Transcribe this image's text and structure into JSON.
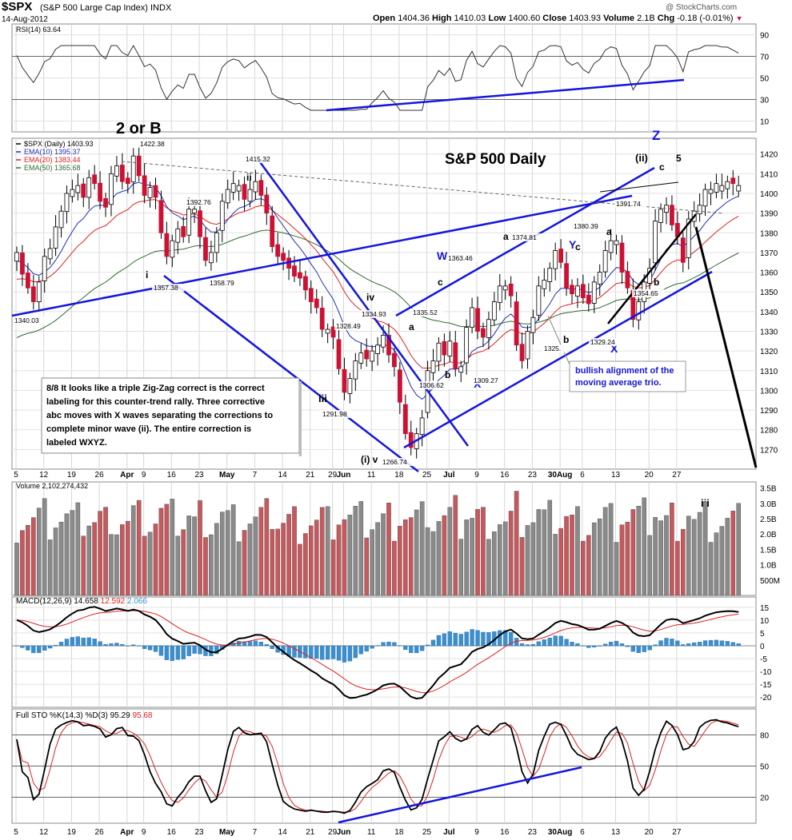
{
  "header": {
    "symbol": "$SPX",
    "name": "(S&P 500 Large Cap Index) INDX",
    "date": "14-Aug-2012",
    "open_label": "Open",
    "open": "1404.36",
    "high_label": "High",
    "high": "1410.03",
    "low_label": "Low",
    "low": "1400.60",
    "close_label": "Close",
    "close": "1403.93",
    "volume_label": "Volume",
    "volume": "2.1B",
    "chg_label": "Chg",
    "chg": "-0.18 (-0.01%)",
    "watermark": "@ StockCharts.com"
  },
  "colors": {
    "up": "#ffffff",
    "down": "#cc1133",
    "ema10": "#1f2fb0",
    "ema20": "#dd2222",
    "ema50": "#2f6b2f",
    "annotation": "#1515dd",
    "macd_hist": "#3a8fd0",
    "volume_up": "#8a8a8a",
    "volume_down": "#c8585c"
  },
  "chart_data": [
    {
      "type": "candlestick",
      "panel": "price",
      "title": "S&P 500 Daily",
      "legend": [
        "$SPX (Daily) 1403.93",
        "EMA(10) 1395.37",
        "EMA(20) 1383.44",
        "EMA(50) 1365.68"
      ],
      "x_tick_labels": [
        "5",
        "12",
        "19",
        "26",
        "Apr",
        "9",
        "16",
        "23",
        "May",
        "7",
        "14",
        "21",
        "29",
        "Jun",
        "11",
        "18",
        "25",
        "Jul",
        "9",
        "16",
        "23",
        "30Aug",
        "6",
        "13",
        "20",
        "27"
      ],
      "y_ticks": [
        1270,
        1280,
        1290,
        1300,
        1310,
        1320,
        1330,
        1340,
        1350,
        1360,
        1370,
        1380,
        1390,
        1400,
        1410,
        1420
      ],
      "ylim": [
        1260,
        1428
      ],
      "closes": [
        1370,
        1359,
        1352,
        1345,
        1355,
        1368,
        1372,
        1383,
        1391,
        1400,
        1402,
        1404,
        1398,
        1408,
        1405,
        1396,
        1393,
        1410,
        1414,
        1406,
        1405,
        1419,
        1409,
        1399,
        1403,
        1398,
        1380,
        1368,
        1376,
        1382,
        1378,
        1392,
        1392,
        1378,
        1366,
        1370,
        1380,
        1396,
        1402,
        1405,
        1404,
        1397,
        1402,
        1406,
        1399,
        1390,
        1373,
        1368,
        1366,
        1362,
        1358,
        1357,
        1351,
        1345,
        1342,
        1331,
        1331,
        1327,
        1311,
        1299,
        1306,
        1315,
        1319,
        1316,
        1320,
        1323,
        1328,
        1318,
        1312,
        1294,
        1278,
        1271,
        1278,
        1286,
        1310,
        1315,
        1324,
        1318,
        1325,
        1311,
        1312,
        1332,
        1342,
        1330,
        1327,
        1336,
        1345,
        1353,
        1353,
        1348,
        1323,
        1315,
        1330,
        1337,
        1353,
        1356,
        1362,
        1371,
        1365,
        1352,
        1349,
        1353,
        1347,
        1344,
        1355,
        1360,
        1371,
        1376,
        1376,
        1360,
        1352,
        1336,
        1345,
        1355,
        1362,
        1386,
        1392,
        1394,
        1384,
        1378,
        1365,
        1387,
        1391,
        1394,
        1402,
        1402,
        1405,
        1404,
        1406,
        1405,
        1404
      ],
      "annotations": [
        {
          "text": "2 or B"
        },
        {
          "text": "Z"
        },
        {
          "text": "(ii)"
        },
        {
          "text": "5"
        },
        {
          "text": "c"
        },
        {
          "text": "i"
        },
        {
          "text": "ii"
        },
        {
          "text": "iii"
        },
        {
          "text": "iv"
        },
        {
          "text": "(i) v"
        },
        {
          "text": "W"
        },
        {
          "text": "X"
        },
        {
          "text": "Y"
        },
        {
          "text": "X"
        },
        {
          "text": "a"
        },
        {
          "text": "b"
        },
        {
          "text": "c"
        },
        {
          "text": "a"
        },
        {
          "text": "b"
        },
        {
          "text": "c"
        },
        {
          "text": "a"
        },
        {
          "text": "b"
        },
        {
          "text": "bullish alignment of the moving average trio."
        },
        {
          "text": "8/8 It looks like a triple Zig-Zag correct is the correct labeling for this counter-trend rally. Three corrective abc moves with X waves separating the corrections to complete minor wave (ii). The entire correction is labeled WXYZ."
        }
      ],
      "price_labels": [
        "1422.38",
        "1415.32",
        "1392.76",
        "1357.38",
        "1358.79",
        "1340.03",
        "1334.93",
        "1328.49",
        "1291.98",
        "1266.74",
        "1335.52",
        "1306.62",
        "1309.27",
        "1363.46",
        "1374.81",
        "1325.",
        "1380.39",
        "1329.24",
        "1391.74",
        "1354.65"
      ]
    },
    {
      "type": "line",
      "panel": "rsi",
      "label": "RSI(14) 63.64",
      "y_ticks": [
        10,
        30,
        50,
        70,
        90
      ]
    },
    {
      "type": "bar",
      "panel": "volume",
      "label": "Volume 2,102,274,432",
      "y_tick_labels": [
        "500M",
        "1.0B",
        "1.5B",
        "2.0B",
        "2.5B",
        "3.0B",
        "3.5B"
      ]
    },
    {
      "type": "line",
      "panel": "macd",
      "label": "MACD(12,26,9)",
      "values": [
        "14.658",
        "12.592",
        "2.066"
      ],
      "y_ticks": [
        -20,
        -15,
        -10,
        -5,
        0,
        5,
        10,
        15
      ]
    },
    {
      "type": "line",
      "panel": "stochastic",
      "label": "Full STO %K(14,3) %D(3)",
      "values": [
        "95.29",
        "95.68"
      ],
      "y_ticks": [
        20,
        50,
        80
      ]
    }
  ],
  "wave_label_volume": "iii"
}
